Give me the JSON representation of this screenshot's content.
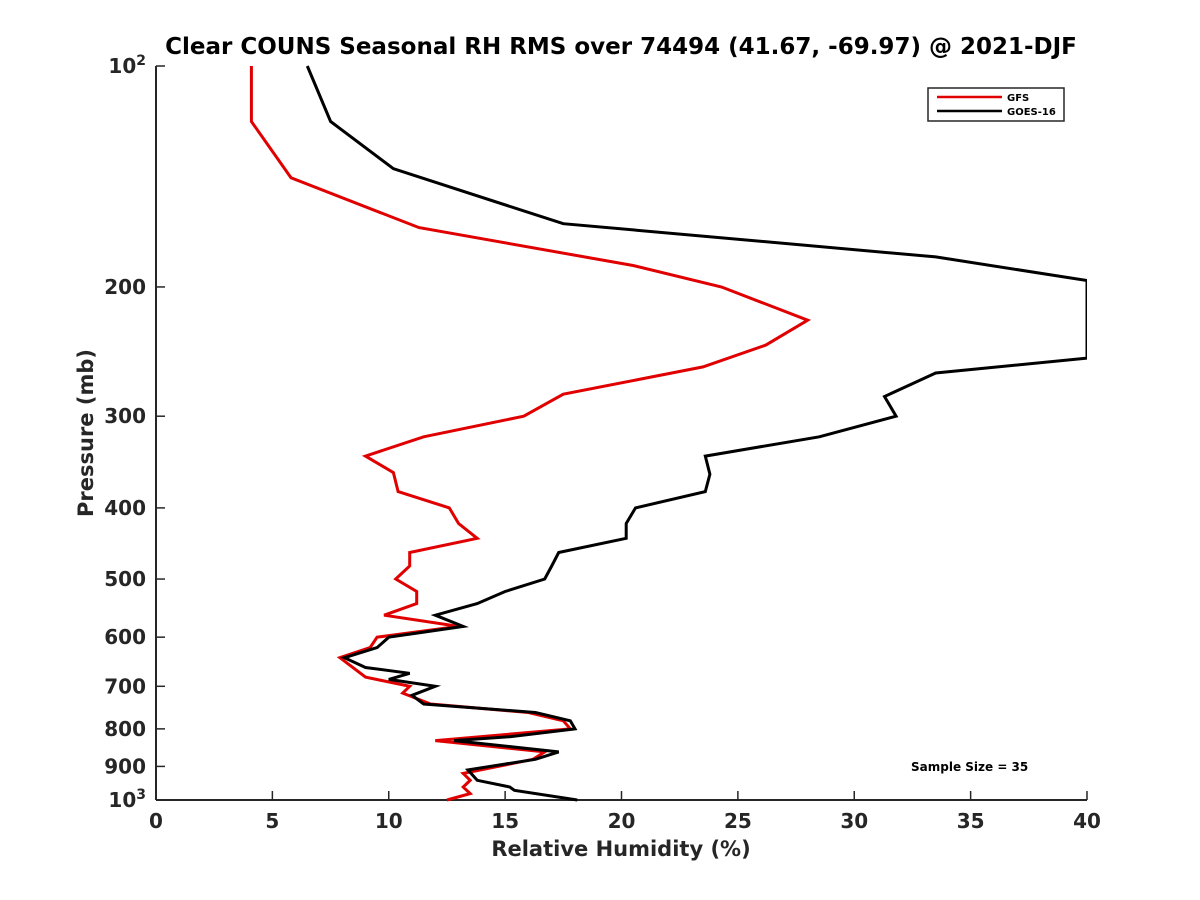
{
  "chart_data": {
    "type": "line",
    "title": "Clear COUNS Seasonal RH RMS over 74494 (41.67, -69.97) @ 2021-DJF",
    "xlabel": "Relative Humidity (%)",
    "ylabel": "Pressure (mb)",
    "xlim": [
      0,
      40
    ],
    "ylim": [
      100,
      1000
    ],
    "yscale": "log",
    "y_reversed": true,
    "x_ticks": [
      "0",
      "5",
      "10",
      "15",
      "20",
      "25",
      "30",
      "35",
      "40"
    ],
    "x_tick_values": [
      0,
      5,
      10,
      15,
      20,
      25,
      30,
      35,
      40
    ],
    "y_ticks": [
      {
        "value": 100,
        "base": "10",
        "exp": "2"
      },
      {
        "value": 200,
        "label": "200"
      },
      {
        "value": 300,
        "label": "300"
      },
      {
        "value": 400,
        "label": "400"
      },
      {
        "value": 500,
        "label": "500"
      },
      {
        "value": 600,
        "label": "600"
      },
      {
        "value": 700,
        "label": "700"
      },
      {
        "value": 800,
        "label": "800"
      },
      {
        "value": 900,
        "label": "900"
      },
      {
        "value": 1000,
        "base": "10",
        "exp": "3"
      }
    ],
    "legend": {
      "position": "top-right",
      "entries": [
        "GFS",
        "GOES-16"
      ]
    },
    "annotation": "Sample Size = 35",
    "series": [
      {
        "name": "GFS",
        "color": "#e00000",
        "points": [
          [
            4.1,
            100
          ],
          [
            4.1,
            119
          ],
          [
            5.8,
            142
          ],
          [
            11.3,
            166
          ],
          [
            20.5,
            187
          ],
          [
            24.3,
            200
          ],
          [
            28.0,
            222
          ],
          [
            26.2,
            240
          ],
          [
            23.5,
            257
          ],
          [
            17.5,
            280
          ],
          [
            15.8,
            300
          ],
          [
            11.5,
            320
          ],
          [
            9.0,
            340
          ],
          [
            10.2,
            358
          ],
          [
            10.4,
            380
          ],
          [
            12.6,
            400
          ],
          [
            13.0,
            420
          ],
          [
            13.8,
            440
          ],
          [
            10.9,
            460
          ],
          [
            10.9,
            480
          ],
          [
            10.3,
            500
          ],
          [
            11.2,
            520
          ],
          [
            11.2,
            540
          ],
          [
            9.8,
            560
          ],
          [
            13.0,
            580
          ],
          [
            9.5,
            600
          ],
          [
            9.2,
            620
          ],
          [
            7.9,
            640
          ],
          [
            9.0,
            680
          ],
          [
            10.9,
            700
          ],
          [
            10.6,
            715
          ],
          [
            11.8,
            740
          ],
          [
            16.0,
            760
          ],
          [
            17.5,
            780
          ],
          [
            17.8,
            800
          ],
          [
            12.0,
            830
          ],
          [
            16.7,
            860
          ],
          [
            16.2,
            880
          ],
          [
            13.2,
            920
          ],
          [
            13.5,
            940
          ],
          [
            13.2,
            960
          ],
          [
            13.5,
            980
          ],
          [
            12.5,
            1000
          ]
        ]
      },
      {
        "name": "GOES-16",
        "color": "#000000",
        "points": [
          [
            6.5,
            100
          ],
          [
            7.5,
            119
          ],
          [
            10.2,
            138
          ],
          [
            17.5,
            164
          ],
          [
            33.5,
            182
          ],
          [
            40.0,
            196
          ],
          [
            40.0,
            250
          ],
          [
            33.5,
            262
          ],
          [
            31.3,
            282
          ],
          [
            31.8,
            300
          ],
          [
            28.5,
            320
          ],
          [
            23.6,
            340
          ],
          [
            23.8,
            360
          ],
          [
            23.6,
            380
          ],
          [
            20.6,
            400
          ],
          [
            20.2,
            420
          ],
          [
            20.2,
            440
          ],
          [
            17.3,
            460
          ],
          [
            17.0,
            480
          ],
          [
            16.7,
            500
          ],
          [
            15.0,
            520
          ],
          [
            13.8,
            540
          ],
          [
            12.0,
            560
          ],
          [
            13.2,
            580
          ],
          [
            10.0,
            600
          ],
          [
            9.5,
            620
          ],
          [
            8.1,
            640
          ],
          [
            9.0,
            660
          ],
          [
            10.9,
            672
          ],
          [
            10.0,
            685
          ],
          [
            12.0,
            700
          ],
          [
            11.0,
            720
          ],
          [
            11.5,
            740
          ],
          [
            16.3,
            760
          ],
          [
            17.8,
            780
          ],
          [
            18.0,
            800
          ],
          [
            15.2,
            820
          ],
          [
            12.8,
            830
          ],
          [
            17.3,
            860
          ],
          [
            16.3,
            880
          ],
          [
            13.4,
            910
          ],
          [
            13.8,
            940
          ],
          [
            15.2,
            960
          ],
          [
            15.4,
            970
          ],
          [
            18.1,
            1000
          ]
        ]
      }
    ]
  }
}
